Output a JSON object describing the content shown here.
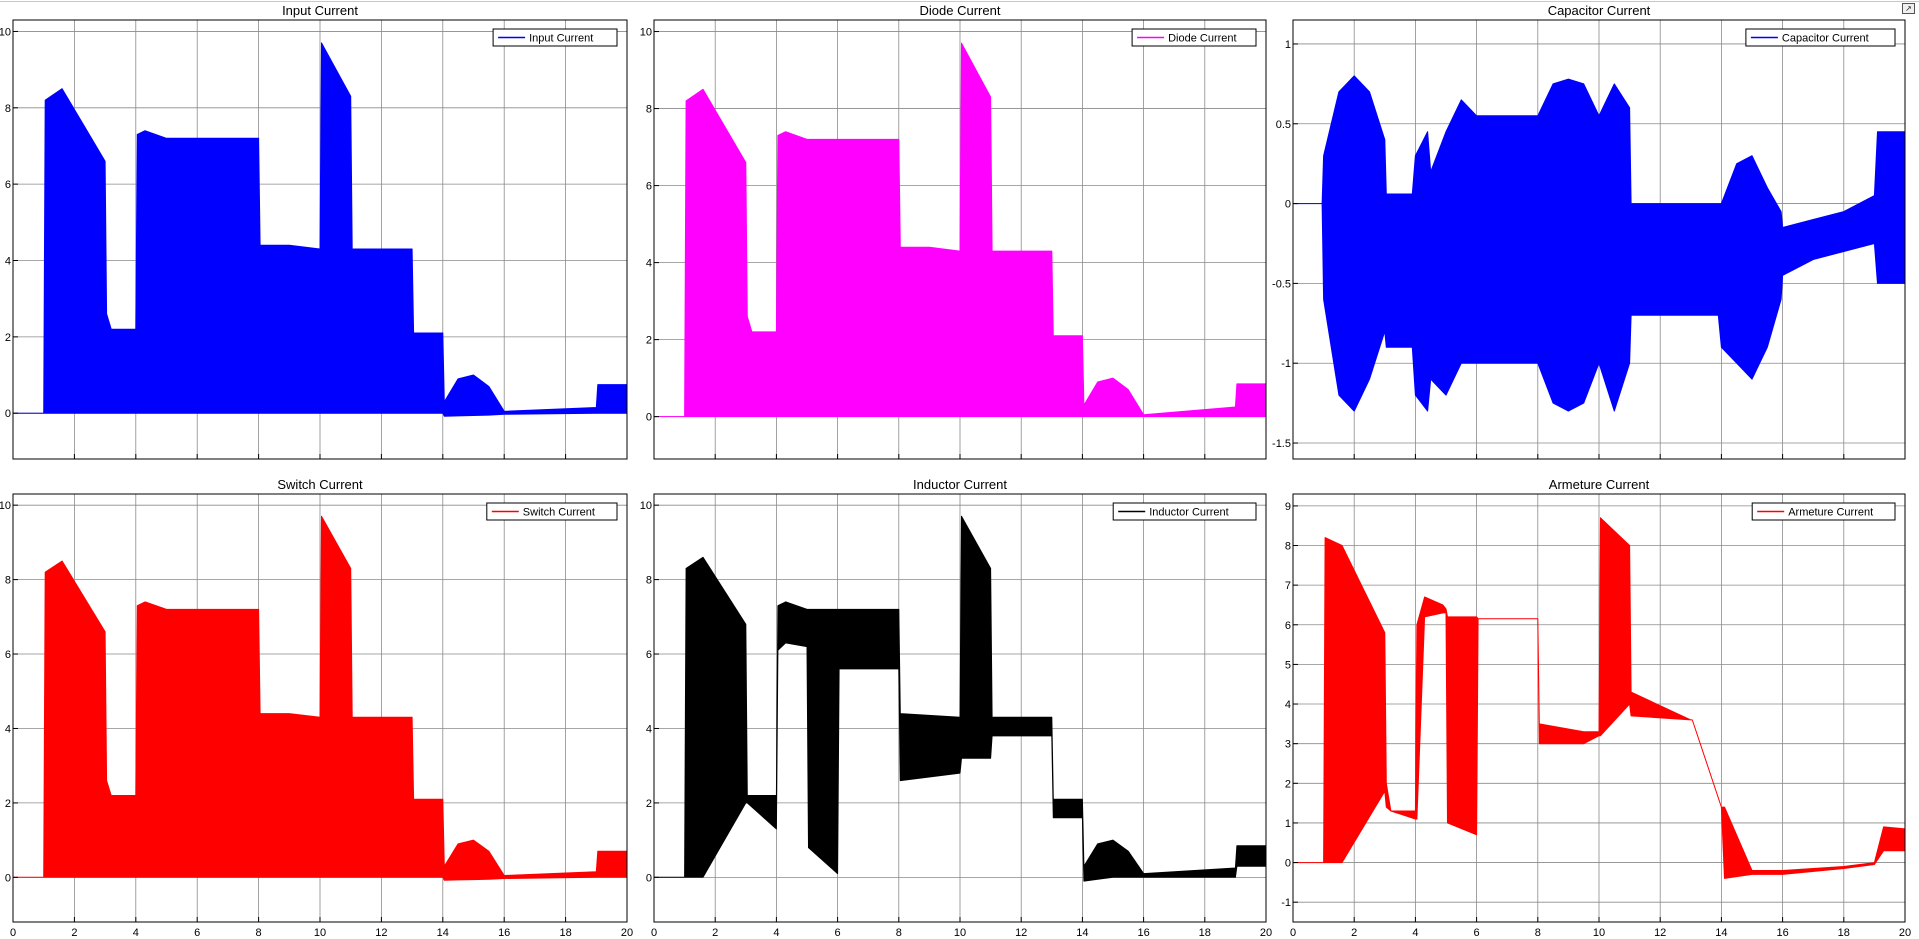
{
  "window": {
    "undock_icon": "undock-icon"
  },
  "colors": {
    "blue": "#0000ff",
    "magenta": "#ff00ff",
    "red": "#ff0000",
    "black": "#000000"
  },
  "chart_data": [
    {
      "type": "line",
      "title": "Input Current",
      "legend": "Input Current",
      "legend_position": "top-right",
      "grid": true,
      "color": "#0000ff",
      "xlim": [
        0,
        20
      ],
      "ylim": [
        -1.2,
        10.3
      ],
      "xticks": [],
      "yticks": [
        0,
        2,
        4,
        6,
        8,
        10
      ],
      "envelope": {
        "t": [
          0,
          1,
          1.05,
          1.6,
          3.0,
          3.05,
          3.2,
          4.0,
          4.05,
          4.3,
          5.0,
          8.0,
          8.05,
          9.0,
          10.0,
          10.05,
          11.0,
          11.05,
          13.0,
          13.05,
          14.0,
          14.05,
          14.5,
          15.0,
          15.5,
          16.0,
          19.0,
          19.05,
          20
        ],
        "upper": [
          0,
          0,
          8.2,
          8.5,
          6.6,
          2.6,
          2.2,
          2.2,
          7.3,
          7.4,
          7.2,
          7.2,
          4.4,
          4.4,
          4.3,
          9.7,
          8.3,
          4.3,
          4.3,
          2.1,
          2.1,
          0.3,
          0.9,
          1.0,
          0.7,
          0.05,
          0.15,
          0.75,
          0.75
        ],
        "lower": [
          0,
          0,
          0,
          0,
          0,
          0,
          0,
          0,
          0,
          0,
          0,
          0,
          0,
          0,
          0,
          0,
          0,
          0,
          0,
          0,
          0,
          -0.08,
          -0.07,
          -0.06,
          -0.05,
          -0.03,
          0,
          0,
          0
        ]
      }
    },
    {
      "type": "line",
      "title": "Diode Current",
      "legend": "Diode Current",
      "legend_position": "top-right",
      "grid": true,
      "color": "#ff00ff",
      "xlim": [
        0,
        20
      ],
      "ylim": [
        -1.1,
        10.3
      ],
      "xticks": [],
      "yticks": [
        0,
        2,
        4,
        6,
        8,
        10
      ],
      "envelope": {
        "t": [
          0,
          1,
          1.05,
          1.6,
          3.0,
          3.05,
          3.2,
          4.0,
          4.05,
          4.3,
          5.0,
          8.0,
          8.05,
          9.0,
          10.0,
          10.05,
          11.0,
          11.05,
          13.0,
          13.05,
          14.0,
          14.05,
          14.5,
          15.0,
          15.5,
          16.0,
          19.0,
          19.05,
          20
        ],
        "upper": [
          0,
          0,
          8.2,
          8.5,
          6.6,
          2.6,
          2.2,
          2.2,
          7.3,
          7.4,
          7.2,
          7.2,
          4.4,
          4.4,
          4.3,
          9.7,
          8.3,
          4.3,
          4.3,
          2.1,
          2.1,
          0.3,
          0.9,
          1.0,
          0.7,
          0.05,
          0.25,
          0.85,
          0.85
        ],
        "lower": [
          0,
          0,
          0,
          0,
          0,
          0,
          0,
          0,
          0,
          0,
          0,
          0,
          0,
          0,
          0,
          0,
          0,
          0,
          0,
          0,
          0,
          0,
          0,
          0,
          0,
          0,
          0,
          0,
          0
        ]
      }
    },
    {
      "type": "line",
      "title": "Capacitor Current",
      "legend": "Capacitor Current",
      "legend_position": "top-right",
      "grid": true,
      "color": "#0000ff",
      "xlim": [
        0,
        20
      ],
      "ylim": [
        -1.6,
        1.15
      ],
      "xticks": [],
      "yticks": [
        -1.5,
        -1,
        -0.5,
        0,
        0.5,
        1
      ],
      "yticklabels": [
        "-1.5",
        "-1",
        "-0.5",
        "0",
        "0.5",
        "1"
      ],
      "envelope": {
        "t": [
          0,
          0.95,
          1.0,
          1.5,
          2.0,
          2.5,
          3.0,
          3.05,
          3.9,
          4.0,
          4.4,
          4.5,
          5.0,
          5.5,
          6.0,
          8.0,
          8.5,
          9.0,
          9.5,
          10.0,
          10.5,
          11.0,
          11.05,
          13.9,
          14.0,
          14.5,
          15.0,
          15.5,
          15.95,
          16.0,
          17.0,
          18.0,
          19.0,
          19.1,
          20
        ],
        "upper": [
          0,
          0,
          0.3,
          0.7,
          0.8,
          0.7,
          0.4,
          0.06,
          0.06,
          0.3,
          0.45,
          0.2,
          0.45,
          0.65,
          0.55,
          0.55,
          0.75,
          0.78,
          0.75,
          0.55,
          0.75,
          0.6,
          0.0,
          0.0,
          0.0,
          0.25,
          0.3,
          0.1,
          -0.05,
          -0.15,
          -0.1,
          -0.05,
          0.05,
          0.45,
          0.45
        ],
        "lower": [
          0,
          0,
          -0.6,
          -1.2,
          -1.3,
          -1.1,
          -0.8,
          -0.9,
          -0.9,
          -1.2,
          -1.3,
          -1.1,
          -1.2,
          -1.0,
          -1.0,
          -1.0,
          -1.25,
          -1.3,
          -1.25,
          -1.0,
          -1.3,
          -1.0,
          -0.7,
          -0.7,
          -0.9,
          -1.0,
          -1.1,
          -0.9,
          -0.6,
          -0.45,
          -0.35,
          -0.3,
          -0.25,
          -0.5,
          -0.5
        ]
      }
    },
    {
      "type": "line",
      "title": "Switch Current",
      "legend": "Switch Current",
      "legend_position": "top-right",
      "grid": true,
      "color": "#ff0000",
      "xlim": [
        0,
        20
      ],
      "ylim": [
        -1.2,
        10.3
      ],
      "xticks": [
        0,
        2,
        4,
        6,
        8,
        10,
        12,
        14,
        16,
        18,
        20
      ],
      "yticks": [
        0,
        2,
        4,
        6,
        8,
        10
      ],
      "envelope": {
        "t": [
          0,
          1,
          1.05,
          1.6,
          3.0,
          3.05,
          3.2,
          4.0,
          4.05,
          4.3,
          5.0,
          8.0,
          8.05,
          9.0,
          10.0,
          10.05,
          11.0,
          11.05,
          13.0,
          13.05,
          14.0,
          14.05,
          14.5,
          15.0,
          15.5,
          16.0,
          19.0,
          19.05,
          20
        ],
        "upper": [
          0,
          0,
          8.2,
          8.5,
          6.6,
          2.6,
          2.2,
          2.2,
          7.3,
          7.4,
          7.2,
          7.2,
          4.4,
          4.4,
          4.3,
          9.7,
          8.3,
          4.3,
          4.3,
          2.1,
          2.1,
          0.3,
          0.9,
          1.0,
          0.7,
          0.05,
          0.15,
          0.7,
          0.7
        ],
        "lower": [
          0,
          0,
          0,
          0,
          0,
          0,
          0,
          0,
          0,
          0,
          0,
          0,
          0,
          0,
          0,
          0,
          0,
          0,
          0,
          0,
          0,
          -0.08,
          -0.07,
          -0.06,
          -0.05,
          -0.03,
          0,
          0,
          0
        ]
      }
    },
    {
      "type": "line",
      "title": "Inductor Current",
      "legend": "Inductor Current",
      "legend_position": "top-right",
      "grid": true,
      "color": "#000000",
      "xlim": [
        0,
        20
      ],
      "ylim": [
        -1.2,
        10.3
      ],
      "xticks": [
        0,
        2,
        4,
        6,
        8,
        10,
        12,
        14,
        16,
        18,
        20
      ],
      "yticks": [
        0,
        2,
        4,
        6,
        8,
        10
      ],
      "envelope": {
        "t": [
          0,
          1,
          1.05,
          1.6,
          3.0,
          3.05,
          4.0,
          4.05,
          4.3,
          5.0,
          5.05,
          6.0,
          6.05,
          8.0,
          8.05,
          10.0,
          10.05,
          11.0,
          11.05,
          13.0,
          13.05,
          14.0,
          14.05,
          14.5,
          15.0,
          15.5,
          16.0,
          19.0,
          19.05,
          20
        ],
        "upper": [
          0,
          0,
          8.3,
          8.6,
          6.8,
          2.2,
          2.2,
          7.3,
          7.4,
          7.2,
          7.2,
          7.2,
          7.2,
          7.2,
          4.4,
          4.3,
          9.7,
          8.3,
          4.3,
          4.3,
          2.1,
          2.1,
          0.3,
          0.9,
          1.0,
          0.7,
          0.1,
          0.25,
          0.85,
          0.85
        ],
        "lower": [
          0,
          0,
          0.0,
          0.0,
          2.0,
          2.0,
          1.3,
          6.1,
          6.3,
          6.2,
          0.8,
          0.1,
          5.6,
          5.6,
          2.6,
          2.8,
          3.2,
          3.2,
          3.8,
          3.8,
          1.6,
          1.6,
          -0.1,
          -0.05,
          0.0,
          0.0,
          0.0,
          0.0,
          0.3,
          0.3
        ]
      }
    },
    {
      "type": "line",
      "title": "Armeture Current",
      "legend": "Armeture Current",
      "legend_position": "top-right",
      "grid": true,
      "color": "#ff0000",
      "xlim": [
        0,
        20
      ],
      "ylim": [
        -1.5,
        9.3
      ],
      "xticks": [
        0,
        2,
        4,
        6,
        8,
        10,
        12,
        14,
        16,
        18,
        20
      ],
      "yticks": [
        -1,
        0,
        1,
        2,
        3,
        4,
        5,
        6,
        7,
        8,
        9
      ],
      "envelope": {
        "t": [
          0,
          1,
          1.05,
          1.6,
          3.0,
          3.05,
          3.2,
          4.0,
          4.05,
          4.3,
          4.9,
          5.0,
          5.05,
          6.0,
          6.05,
          8.0,
          8.05,
          9.5,
          10.0,
          10.05,
          11.0,
          11.05,
          13.0,
          13.05,
          14.0,
          14.1,
          15.0,
          16.0,
          18.0,
          19.0,
          19.3,
          20
        ],
        "upper": [
          0,
          0,
          8.2,
          8.0,
          5.8,
          2.0,
          1.3,
          1.3,
          6.0,
          6.7,
          6.5,
          6.4,
          6.2,
          6.2,
          6.15,
          6.15,
          3.5,
          3.3,
          3.3,
          8.7,
          8.0,
          4.3,
          3.6,
          3.6,
          1.4,
          1.4,
          -0.2,
          -0.2,
          -0.1,
          0.0,
          0.9,
          0.85
        ],
        "lower": [
          0,
          0,
          0,
          0,
          1.8,
          1.4,
          1.3,
          1.1,
          1.1,
          6.2,
          6.3,
          6.3,
          1.0,
          0.7,
          6.15,
          6.15,
          3.0,
          3.0,
          3.2,
          3.2,
          4.0,
          3.7,
          3.6,
          3.6,
          1.4,
          -0.4,
          -0.3,
          -0.3,
          -0.15,
          -0.05,
          0.3,
          0.3
        ]
      }
    }
  ]
}
